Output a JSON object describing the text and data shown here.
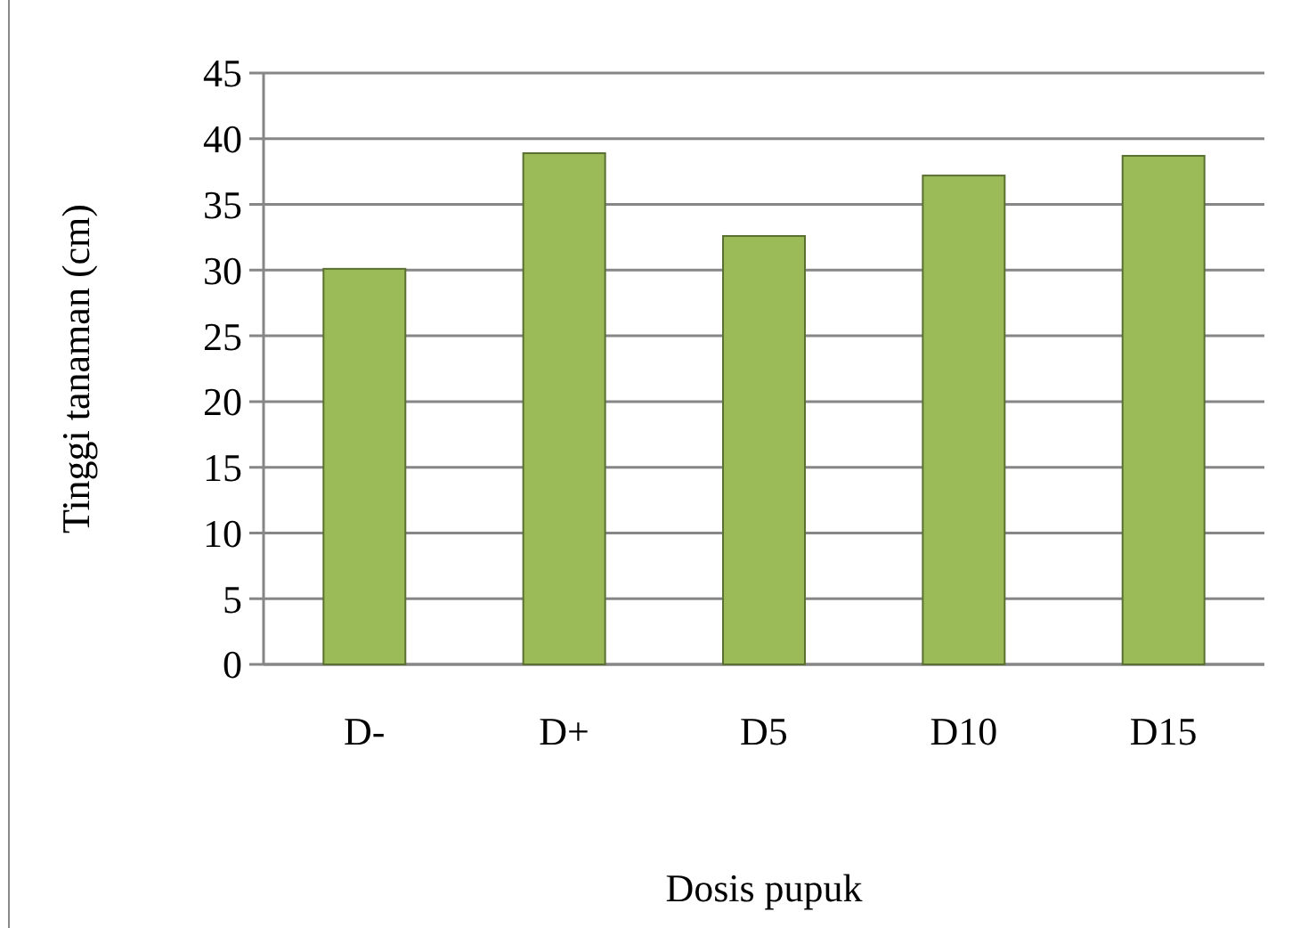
{
  "chart_data": {
    "type": "bar",
    "xlabel": "Dosis pupuk",
    "ylabel": "Tinggi tanaman (cm)",
    "categories": [
      "D-",
      "D+",
      "D5",
      "D10",
      "D15"
    ],
    "values": [
      30.1,
      38.9,
      32.6,
      37.2,
      38.7
    ],
    "color": "#9bbb59",
    "ylim": [
      0,
      45
    ],
    "yticks": [
      0,
      5,
      10,
      15,
      20,
      25,
      30,
      35,
      40,
      45
    ],
    "grid": "y"
  }
}
